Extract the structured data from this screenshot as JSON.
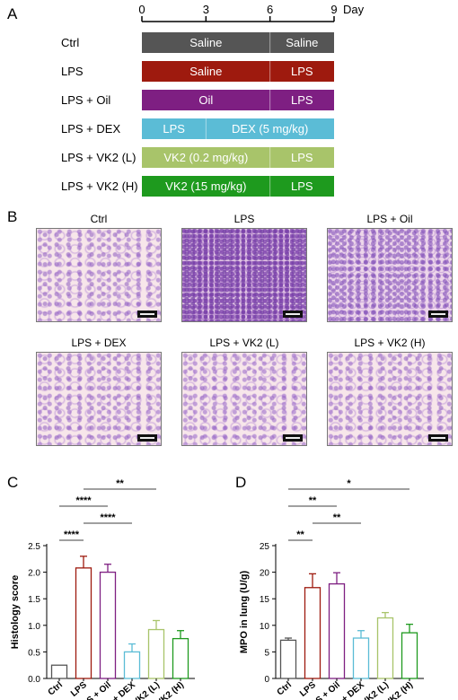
{
  "panels": {
    "a": "A",
    "b": "B",
    "c": "C",
    "d": "D"
  },
  "timeline": {
    "ticks": [
      "0",
      "3",
      "6",
      "9"
    ],
    "unit": "Day",
    "rows": [
      {
        "label": "Ctrl",
        "color": "#555555",
        "text_color": "#ffffff",
        "segments": [
          {
            "text": "Saline",
            "from": 0,
            "to": 6
          },
          {
            "text": "Saline",
            "from": 6,
            "to": 9
          }
        ]
      },
      {
        "label": "LPS",
        "color": "#9e1a0e",
        "text_color": "#ffffff",
        "segments": [
          {
            "text": "Saline",
            "from": 0,
            "to": 6
          },
          {
            "text": "LPS",
            "from": 6,
            "to": 9
          }
        ]
      },
      {
        "label": "LPS + Oil",
        "color": "#7e1f82",
        "text_color": "#ffffff",
        "segments": [
          {
            "text": "Oil",
            "from": 0,
            "to": 6
          },
          {
            "text": "LPS",
            "from": 6,
            "to": 9
          }
        ]
      },
      {
        "label": "LPS + DEX",
        "color": "#5bbcd6",
        "text_color": "#ffffff",
        "segments": [
          {
            "text": "LPS",
            "from": 0,
            "to": 3
          },
          {
            "text": "DEX (5 mg/kg)",
            "from": 3,
            "to": 9
          }
        ]
      },
      {
        "label": "LPS + VK2 (L)",
        "color": "#a8c46a",
        "text_color": "#ffffff",
        "segments": [
          {
            "text": "VK2 (0.2 mg/kg)",
            "from": 0,
            "to": 6
          },
          {
            "text": "LPS",
            "from": 6,
            "to": 9
          }
        ]
      },
      {
        "label": "LPS + VK2 (H)",
        "color": "#1e9a1e",
        "text_color": "#ffffff",
        "segments": [
          {
            "text": "VK2 (15 mg/kg)",
            "from": 0,
            "to": 6
          },
          {
            "text": "LPS",
            "from": 6,
            "to": 9
          }
        ]
      }
    ]
  },
  "micrographs": [
    {
      "title": "Ctrl",
      "texture": "sparse"
    },
    {
      "title": "LPS",
      "texture": "dense"
    },
    {
      "title": "LPS + Oil",
      "texture": "medium"
    },
    {
      "title": "LPS + DEX",
      "texture": "sparse"
    },
    {
      "title": "LPS + VK2 (L)",
      "texture": "sparse"
    },
    {
      "title": "LPS + VK2 (H)",
      "texture": "sparse"
    }
  ],
  "chart_data": [
    {
      "type": "bar",
      "categories": [
        "Ctrl",
        "LPS",
        "LPS + Oil",
        "LPS + DEX",
        "LPS + VK2 (L)",
        "LPS + VK2 (H)"
      ],
      "values": [
        0.25,
        2.08,
        2.0,
        0.5,
        0.92,
        0.75
      ],
      "errors": [
        0.0,
        0.22,
        0.15,
        0.15,
        0.17,
        0.15
      ],
      "colors": [
        "#555555",
        "#9e1a0e",
        "#7e1f82",
        "#5bbcd6",
        "#a8c46a",
        "#1e9a1e"
      ],
      "ylabel": "Histology score",
      "ylim": [
        0,
        2.5
      ],
      "yticks": [
        "0.0",
        "0.5",
        "1.0",
        "1.5",
        "2.0",
        "2.5"
      ],
      "significance": [
        {
          "from": 0,
          "to": 1,
          "label": "****"
        },
        {
          "from": 1,
          "to": 3,
          "label": "****"
        },
        {
          "from": 0,
          "to": 2,
          "label": "****"
        },
        {
          "from": 1,
          "to": 4,
          "label": "**"
        },
        {
          "from": 1,
          "to": 5,
          "label": "***"
        }
      ]
    },
    {
      "type": "bar",
      "categories": [
        "Ctrl",
        "LPS",
        "LPS + Oil",
        "LPS + DEX",
        "LPS + VK2 (L)",
        "LPS + VK2 (H)"
      ],
      "values": [
        7.2,
        17.1,
        17.8,
        7.6,
        11.4,
        8.6
      ],
      "errors": [
        0.4,
        2.6,
        2.1,
        1.4,
        1.0,
        1.6
      ],
      "colors": [
        "#555555",
        "#9e1a0e",
        "#7e1f82",
        "#5bbcd6",
        "#a8c46a",
        "#1e9a1e"
      ],
      "ylabel": "MPO in lung (U/g)",
      "ylim": [
        0,
        25
      ],
      "yticks": [
        "0",
        "5",
        "10",
        "15",
        "20",
        "25"
      ],
      "significance": [
        {
          "from": 0,
          "to": 1,
          "label": "**"
        },
        {
          "from": 1,
          "to": 3,
          "label": "**"
        },
        {
          "from": 0,
          "to": 2,
          "label": "**"
        },
        {
          "from": 0,
          "to": 5,
          "label": "*"
        }
      ]
    }
  ]
}
